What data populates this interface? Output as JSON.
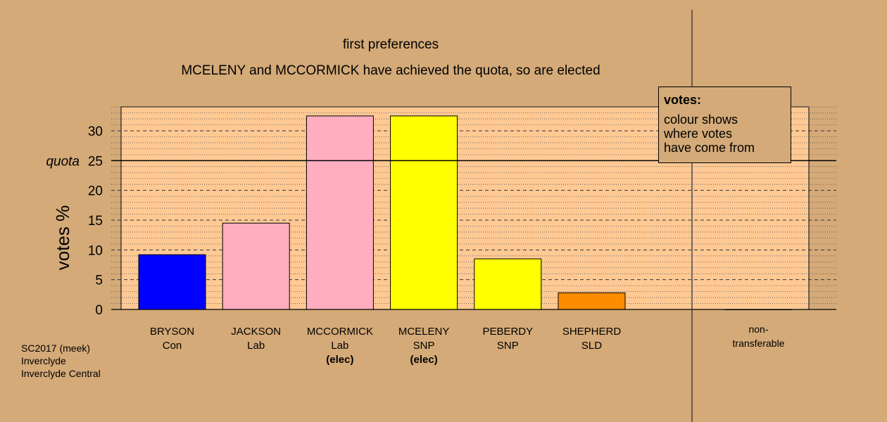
{
  "title": "first preferences",
  "subtitle": "MCELENY and MCCORMICK have achieved the quota, so are elected",
  "legend": {
    "title": "votes:",
    "text": "colour shows\nwhere votes\nhave come from"
  },
  "footer": [
    "SC2017 (meek)",
    "Inverclyde",
    "Inverclyde Central"
  ],
  "colors": {
    "background": "#d4aa78",
    "plot_background": "#ffc994"
  },
  "chart_data": {
    "type": "bar",
    "ylabel": "votes %",
    "ylim": [
      0,
      34
    ],
    "yticks": [
      0,
      5,
      10,
      15,
      20,
      25,
      30
    ],
    "quota": 25,
    "quota_label": "quota",
    "grid": true,
    "legend_position": "top-right",
    "categories": [
      {
        "name": "BRYSON",
        "party": "Con",
        "note": "",
        "value": 9.2,
        "color": "#0000ff"
      },
      {
        "name": "JACKSON",
        "party": "Lab",
        "note": "",
        "value": 14.5,
        "color": "#ffaec0"
      },
      {
        "name": "MCCORMICK",
        "party": "Lab",
        "note": "(elec)",
        "value": 32.5,
        "color": "#ffaec0"
      },
      {
        "name": "MCELENY",
        "party": "SNP",
        "note": "(elec)",
        "value": 32.5,
        "color": "#ffff00"
      },
      {
        "name": "PEBERDY",
        "party": "SNP",
        "note": "",
        "value": 8.5,
        "color": "#ffff00"
      },
      {
        "name": "SHEPHERD",
        "party": "SLD",
        "note": "",
        "value": 2.8,
        "color": "#ff8c00"
      }
    ],
    "nontransferable": {
      "label": "non-\ntransferable",
      "value": 0
    }
  }
}
